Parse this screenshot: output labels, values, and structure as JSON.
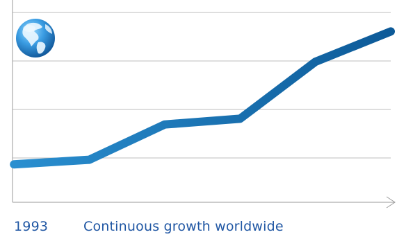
{
  "chart_data": {
    "type": "line",
    "title": "",
    "xlabel": "",
    "ylabel": "",
    "x": [
      0,
      1,
      2,
      3,
      4,
      5
    ],
    "series": [
      {
        "values": [
          0.5,
          0.62,
          1.55,
          1.7,
          3.2,
          4.0
        ]
      }
    ],
    "xlim": [
      -0.02,
      5.0
    ],
    "ylim": [
      -0.5,
      4.5
    ],
    "grid": true,
    "legend": "none",
    "line_color_start": "#2a8fd0",
    "line_color_end": "#0d5a98",
    "icon": "globe-icon"
  },
  "caption": {
    "year": "1993",
    "text": "Continuous growth worldwide",
    "color": "#1f56a3"
  }
}
